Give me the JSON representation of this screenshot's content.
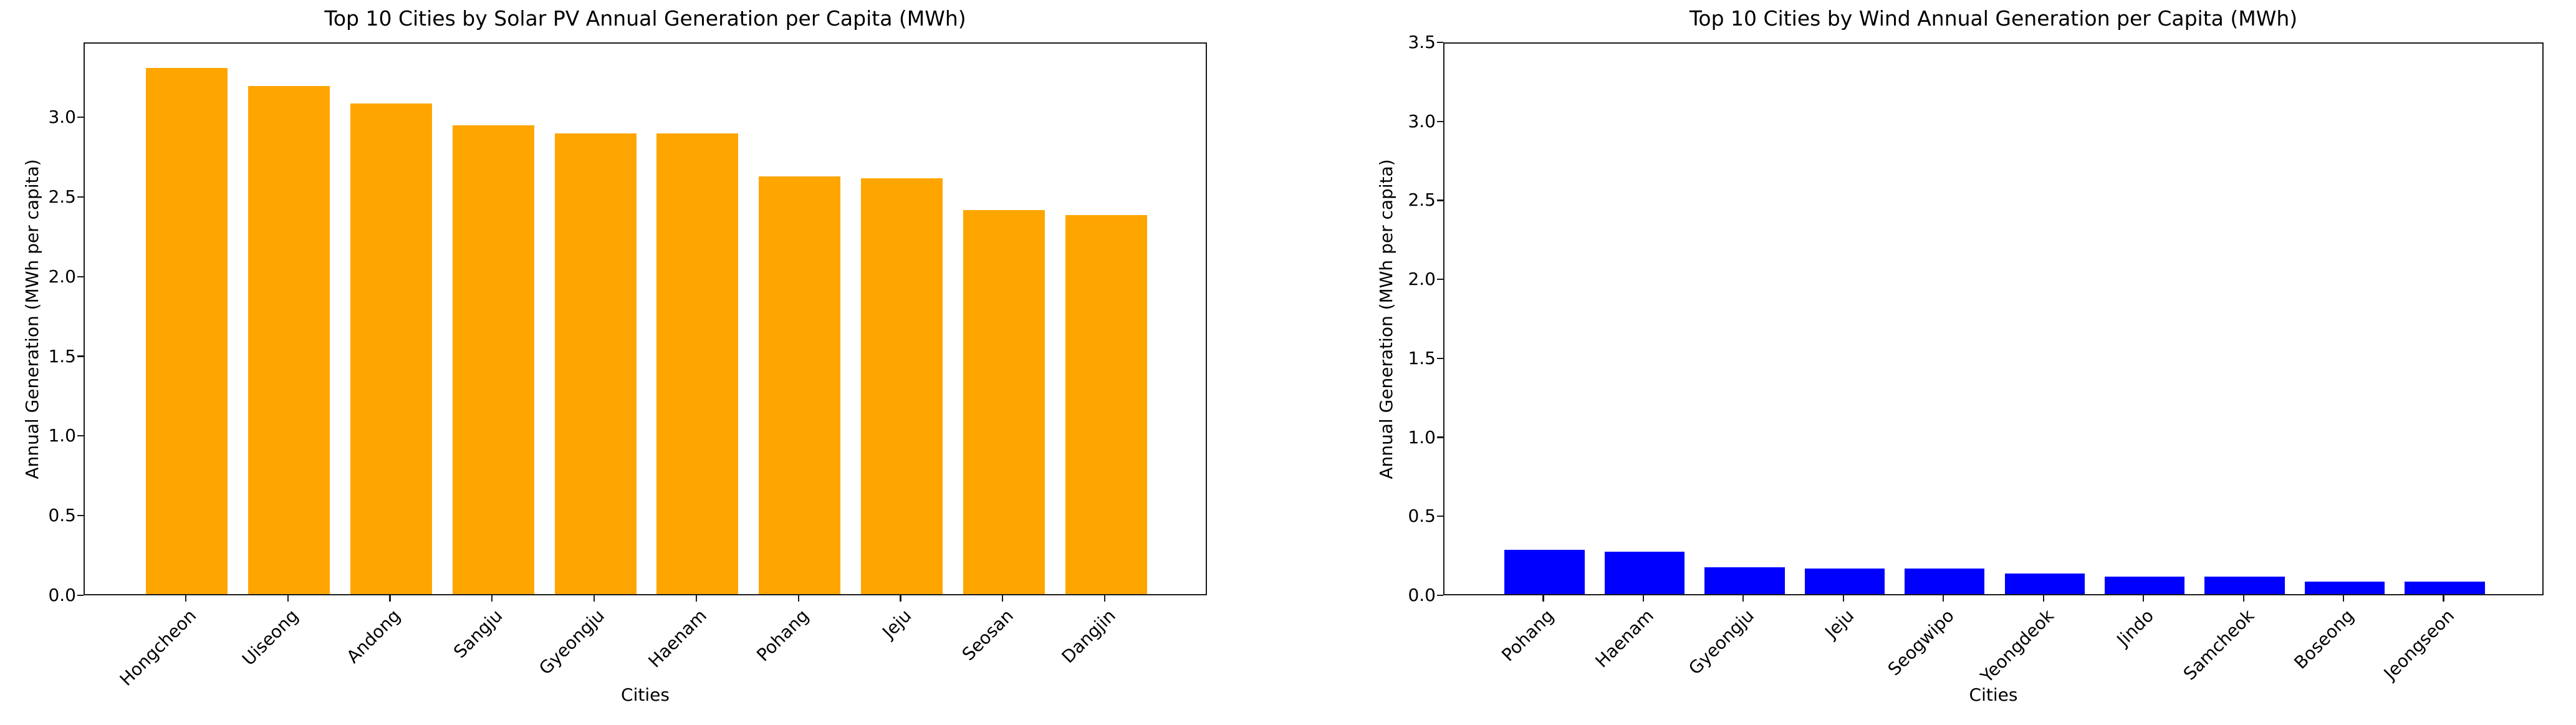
{
  "figure": {
    "background": "#ffffff"
  },
  "chart_data": [
    {
      "type": "bar",
      "title": "Top 10 Cities by Solar PV Annual Generation per Capita (MWh)",
      "xlabel": "Cities",
      "ylabel": "Annual Generation (MWh per capita)",
      "categories": [
        "Hongcheon",
        "Uiseong",
        "Andong",
        "Sangju",
        "Gyeongju",
        "Haenam",
        "Pohang",
        "Jeju",
        "Seosan",
        "Dangjin"
      ],
      "values": [
        3.3,
        3.19,
        3.08,
        2.94,
        2.89,
        2.89,
        2.62,
        2.61,
        2.41,
        2.38
      ],
      "bar_color": "#FFA500",
      "ylim": [
        0,
        3.47
      ],
      "yticks": [
        0.0,
        0.5,
        1.0,
        1.5,
        2.0,
        2.5,
        3.0
      ],
      "grid": false,
      "legend": null,
      "tick_label_rotation_deg": 45
    },
    {
      "type": "bar",
      "title": "Top 10 Cities by Wind Annual Generation per Capita (MWh)",
      "xlabel": "Cities",
      "ylabel": "Annual Generation (MWh per capita)",
      "categories": [
        "Pohang",
        "Haenam",
        "Gyeongju",
        "Jeju",
        "Seogwipo",
        "Yeongdeok",
        "Jindo",
        "Samcheok",
        "Boseong",
        "Jeongseon"
      ],
      "values": [
        0.28,
        0.27,
        0.17,
        0.16,
        0.16,
        0.13,
        0.11,
        0.11,
        0.08,
        0.08
      ],
      "bar_color": "#0000FF",
      "ylim": [
        0,
        3.5
      ],
      "yticks": [
        0.0,
        0.5,
        1.0,
        1.5,
        2.0,
        2.5,
        3.0,
        3.5
      ],
      "grid": false,
      "legend": null,
      "tick_label_rotation_deg": 45
    }
  ]
}
